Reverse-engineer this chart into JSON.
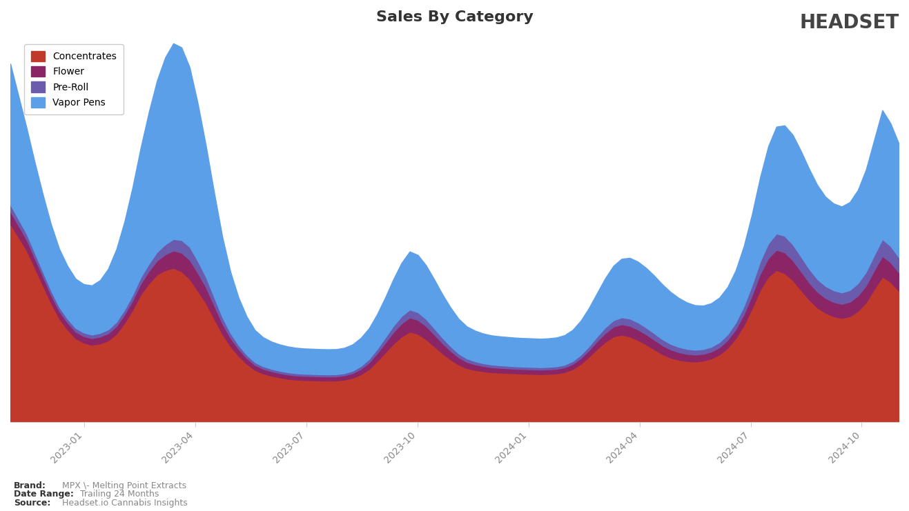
{
  "title": "Sales By Category",
  "categories": [
    "Concentrates",
    "Flower",
    "Pre-Roll",
    "Vapor Pens"
  ],
  "colors": {
    "Concentrates": "#C0392B",
    "Flower": "#8B2566",
    "Pre-Roll": "#6B5BAD",
    "Vapor Pens": "#5B9FE8"
  },
  "background_color": "#FFFFFF",
  "plot_bg_color": "#FFFFFF",
  "brand_text": "MPX \\- Melting Point Extracts",
  "date_range_text": "Trailing 24 Months",
  "source_text": "Headset.io Cannabis Insights",
  "x_tick_labels": [
    "2023-01",
    "2023-04",
    "2023-07",
    "2023-10",
    "2024-01",
    "2024-04",
    "2024-07",
    "2024-10"
  ],
  "concentrates": [
    4500,
    4200,
    3900,
    3500,
    3100,
    2700,
    2350,
    2100,
    1900,
    1800,
    1750,
    1780,
    1850,
    2000,
    2250,
    2550,
    2900,
    3150,
    3350,
    3450,
    3500,
    3420,
    3250,
    2980,
    2700,
    2350,
    2000,
    1720,
    1500,
    1320,
    1180,
    1100,
    1050,
    1010,
    980,
    960,
    950,
    945,
    940,
    938,
    940,
    960,
    1000,
    1080,
    1200,
    1380,
    1580,
    1780,
    1940,
    2050,
    2000,
    1880,
    1720,
    1560,
    1420,
    1300,
    1220,
    1180,
    1150,
    1130,
    1120,
    1110,
    1100,
    1095,
    1090,
    1085,
    1090,
    1100,
    1130,
    1200,
    1320,
    1480,
    1660,
    1820,
    1940,
    1980,
    1940,
    1860,
    1760,
    1650,
    1540,
    1460,
    1410,
    1380,
    1370,
    1390,
    1440,
    1530,
    1680,
    1900,
    2200,
    2580,
    3000,
    3300,
    3450,
    3380,
    3220,
    3000,
    2780,
    2600,
    2480,
    2400,
    2360,
    2400,
    2520,
    2720,
    3020,
    3300,
    3180,
    2980
  ],
  "flower": [
    280,
    260,
    240,
    220,
    200,
    182,
    168,
    158,
    150,
    148,
    150,
    155,
    162,
    174,
    192,
    215,
    244,
    278,
    316,
    356,
    394,
    424,
    432,
    406,
    360,
    300,
    240,
    190,
    155,
    130,
    114,
    106,
    102,
    99,
    97,
    95,
    94,
    93,
    93,
    92,
    93,
    96,
    106,
    122,
    146,
    178,
    218,
    260,
    298,
    322,
    318,
    298,
    268,
    232,
    196,
    164,
    142,
    128,
    118,
    112,
    108,
    106,
    104,
    103,
    102,
    101,
    102,
    104,
    108,
    116,
    130,
    150,
    174,
    200,
    222,
    238,
    244,
    240,
    230,
    216,
    200,
    186,
    174,
    164,
    157,
    154,
    156,
    163,
    178,
    204,
    244,
    298,
    362,
    420,
    462,
    472,
    454,
    424,
    390,
    360,
    338,
    326,
    320,
    328,
    348,
    380,
    424,
    468,
    448,
    418
  ],
  "preroll": [
    160,
    148,
    136,
    124,
    112,
    102,
    94,
    88,
    84,
    82,
    82,
    84,
    88,
    96,
    108,
    124,
    144,
    168,
    196,
    228,
    260,
    288,
    296,
    272,
    236,
    190,
    148,
    114,
    90,
    74,
    64,
    58,
    55,
    53,
    51,
    50,
    49,
    49,
    48,
    48,
    48,
    50,
    56,
    66,
    80,
    98,
    120,
    144,
    166,
    180,
    176,
    162,
    144,
    124,
    106,
    90,
    78,
    70,
    65,
    61,
    59,
    58,
    57,
    56,
    56,
    55,
    56,
    57,
    60,
    66,
    76,
    90,
    108,
    128,
    146,
    158,
    164,
    162,
    156,
    148,
    138,
    128,
    120,
    114,
    110,
    108,
    110,
    117,
    130,
    152,
    186,
    230,
    284,
    334,
    368,
    376,
    362,
    338,
    312,
    290,
    272,
    264,
    260,
    266,
    282,
    310,
    348,
    386,
    370,
    346
  ],
  "vapor_pens": [
    3200,
    2800,
    2400,
    2050,
    1750,
    1500,
    1320,
    1200,
    1120,
    1100,
    1120,
    1200,
    1380,
    1650,
    2000,
    2450,
    2950,
    3450,
    3900,
    4250,
    4450,
    4380,
    4080,
    3580,
    2980,
    2380,
    1830,
    1390,
    1080,
    870,
    730,
    660,
    620,
    600,
    588,
    580,
    576,
    574,
    572,
    571,
    572,
    578,
    600,
    640,
    700,
    790,
    910,
    1060,
    1210,
    1320,
    1300,
    1220,
    1110,
    990,
    880,
    790,
    730,
    696,
    676,
    664,
    658,
    655,
    652,
    650,
    649,
    648,
    650,
    656,
    672,
    710,
    775,
    870,
    990,
    1120,
    1240,
    1330,
    1380,
    1380,
    1355,
    1310,
    1248,
    1180,
    1115,
    1058,
    1015,
    990,
    990,
    1015,
    1075,
    1185,
    1365,
    1610,
    1910,
    2210,
    2430,
    2510,
    2490,
    2400,
    2275,
    2140,
    2030,
    1975,
    1955,
    2000,
    2120,
    2330,
    2620,
    2930,
    2790,
    2590
  ]
}
